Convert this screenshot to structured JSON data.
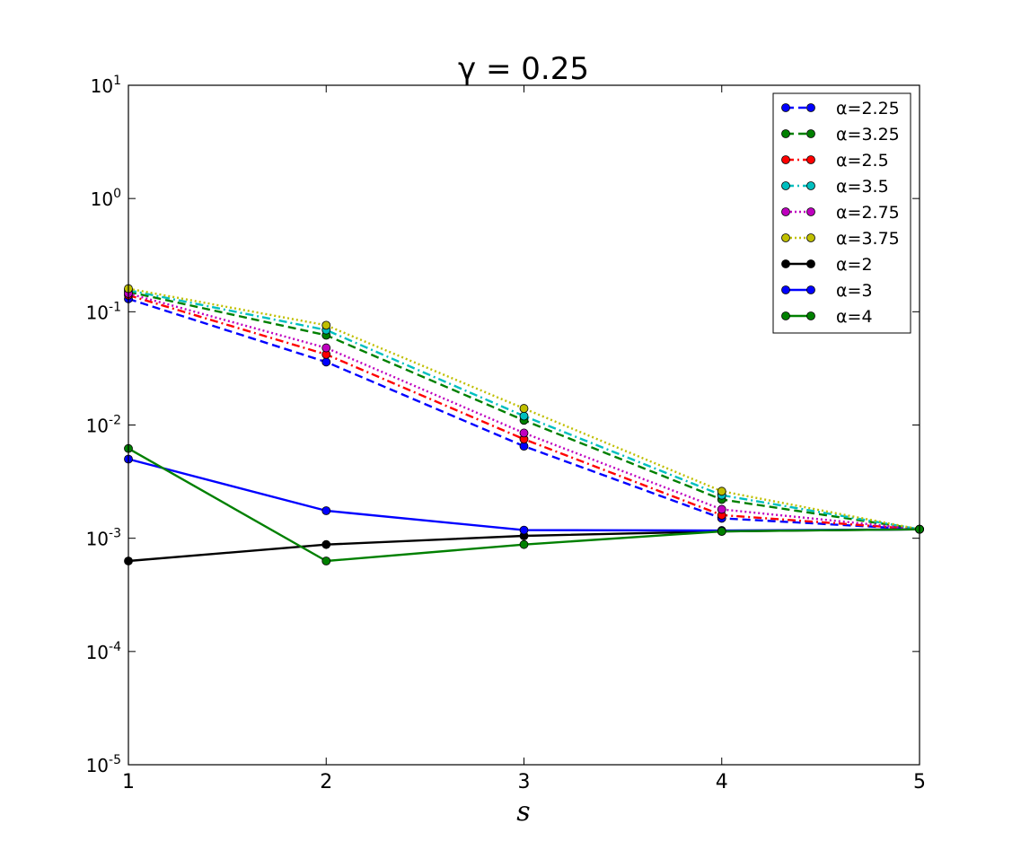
{
  "chart_data": {
    "type": "line",
    "title": "γ = 0.25",
    "xlabel": "s",
    "ylabel": "",
    "x": [
      1,
      2,
      3,
      4,
      5
    ],
    "xlim": [
      1,
      5
    ],
    "ylim": [
      1e-05,
      10
    ],
    "yscale": "log",
    "x_ticks": [
      "1",
      "2",
      "3",
      "4",
      "5"
    ],
    "y_ticks": [
      {
        "base": "10",
        "exp": "1"
      },
      {
        "base": "10",
        "exp": "0"
      },
      {
        "base": "10",
        "exp": "-1"
      },
      {
        "base": "10",
        "exp": "-2"
      },
      {
        "base": "10",
        "exp": "-3"
      },
      {
        "base": "10",
        "exp": "-4"
      },
      {
        "base": "10",
        "exp": "-5"
      }
    ],
    "grid": false,
    "legend_position": "top-right",
    "series": [
      {
        "name": "α=2.25",
        "color": "#0000ff",
        "style": "dashed",
        "values": [
          0.13,
          0.036,
          0.0065,
          0.0015,
          0.0012
        ]
      },
      {
        "name": "α=3.25",
        "color": "#008000",
        "style": "dashed",
        "values": [
          0.15,
          0.062,
          0.011,
          0.0022,
          0.0012
        ]
      },
      {
        "name": "α=2.5",
        "color": "#ff0000",
        "style": "dashdot",
        "values": [
          0.14,
          0.042,
          0.0075,
          0.0016,
          0.0012
        ]
      },
      {
        "name": "α=3.5",
        "color": "#00bfbf",
        "style": "dashdot",
        "values": [
          0.155,
          0.069,
          0.012,
          0.0024,
          0.0012
        ]
      },
      {
        "name": "α=2.75",
        "color": "#bf00bf",
        "style": "dotted",
        "values": [
          0.145,
          0.048,
          0.0085,
          0.0018,
          0.0012
        ]
      },
      {
        "name": "α=3.75",
        "color": "#bfbf00",
        "style": "dotted",
        "values": [
          0.16,
          0.076,
          0.014,
          0.0026,
          0.0012
        ]
      },
      {
        "name": "α=2",
        "color": "#000000",
        "style": "solid",
        "values": [
          0.00063,
          0.00088,
          0.00105,
          0.00115,
          0.0012
        ]
      },
      {
        "name": "α=3",
        "color": "#0000ff",
        "style": "solid",
        "values": [
          0.005,
          0.00175,
          0.00118,
          0.00117,
          0.0012
        ]
      },
      {
        "name": "α=4",
        "color": "#008000",
        "style": "solid",
        "values": [
          0.0062,
          0.00063,
          0.00088,
          0.00115,
          0.0012
        ]
      }
    ]
  }
}
